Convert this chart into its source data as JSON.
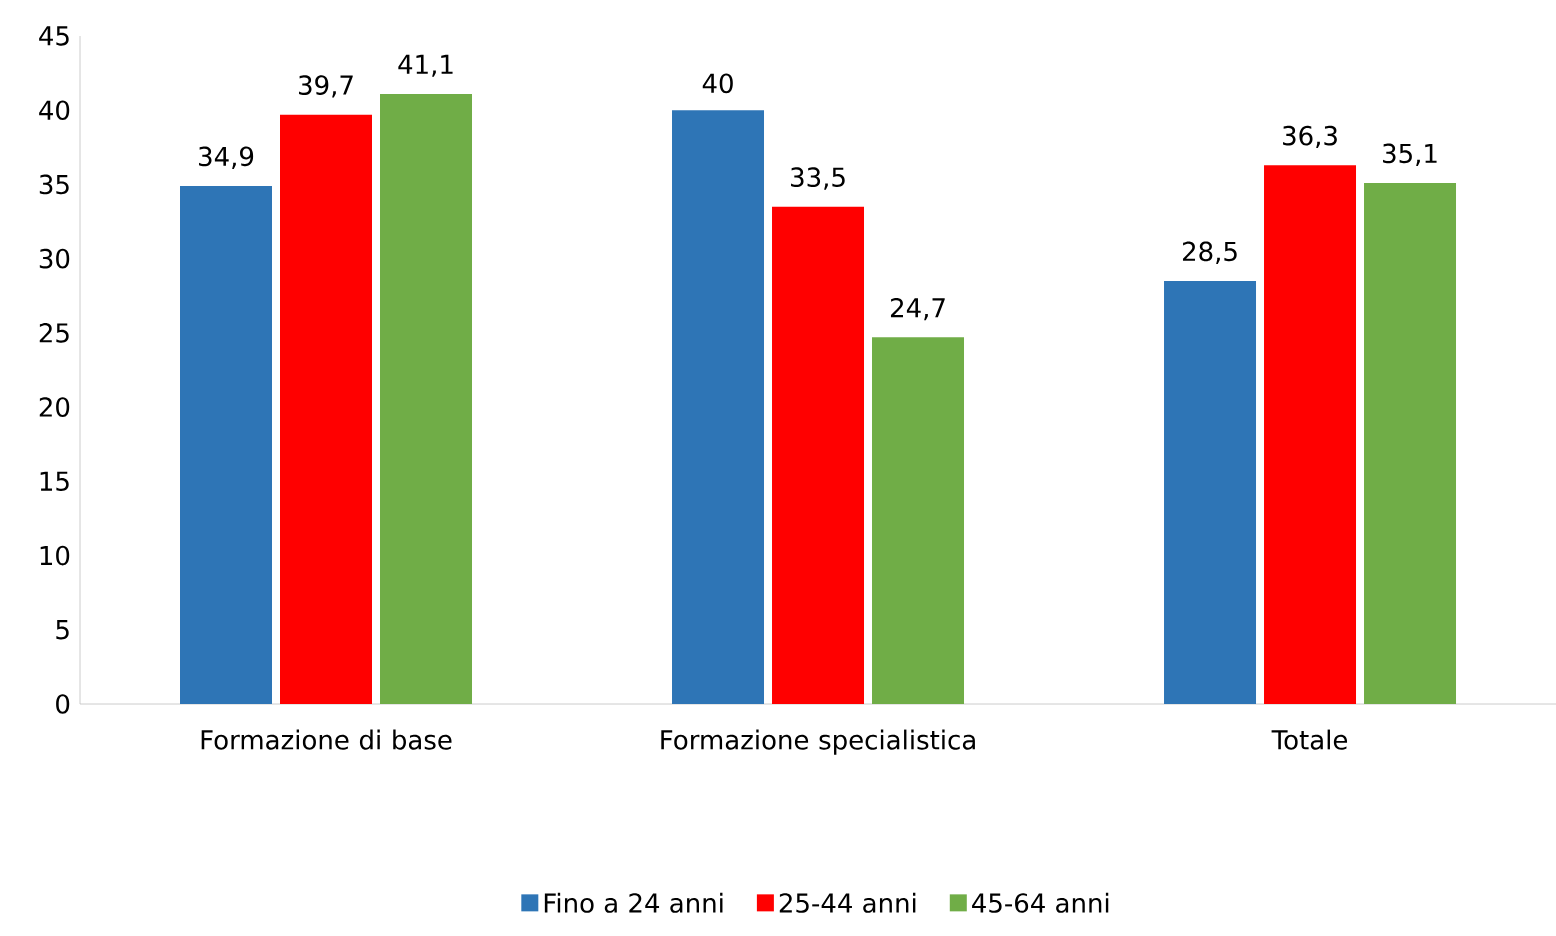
{
  "chart_data": {
    "type": "bar",
    "categories": [
      "Formazione di base",
      "Formazione specialistica",
      "Totale"
    ],
    "series": [
      {
        "name": "Fino a 24 anni",
        "color": "#2e75b6",
        "values": [
          34.9,
          40,
          28.5
        ],
        "value_labels": [
          "34,9",
          "40",
          "28,5"
        ]
      },
      {
        "name": "25-44 anni",
        "color": "#ff0000",
        "values": [
          39.7,
          33.5,
          36.3
        ],
        "value_labels": [
          "39,7",
          "33,5",
          "36,3"
        ]
      },
      {
        "name": "45-64 anni",
        "color": "#70ad47",
        "values": [
          41.1,
          24.7,
          35.1
        ],
        "value_labels": [
          "41,1",
          "24,7",
          "35,1"
        ]
      }
    ],
    "ylim": [
      0,
      45
    ],
    "yticks": [
      0,
      5,
      10,
      15,
      20,
      25,
      30,
      35,
      40,
      45
    ],
    "grid": false,
    "legend": "bottom"
  }
}
